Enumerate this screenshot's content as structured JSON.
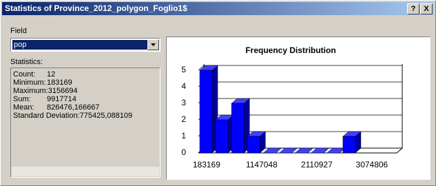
{
  "window": {
    "title": "Statistics of Province_2012_polygon_Foglio1$",
    "buttons": [
      "?",
      "X"
    ]
  },
  "field": {
    "label": "Field",
    "value": "pop"
  },
  "statistics": {
    "label": "Statistics:",
    "rows": [
      [
        "Count:",
        "12"
      ],
      [
        "Minimum:",
        "183169"
      ],
      [
        "Maximum:",
        "3156694"
      ],
      [
        "Sum:",
        "9917714"
      ],
      [
        "Mean:",
        "826476,166667"
      ],
      [
        "Standard Deviation:",
        "775425,088109"
      ]
    ]
  },
  "chart_data": {
    "type": "bar",
    "title": "Frequency Distribution",
    "categories": [
      null,
      null,
      null,
      null,
      null,
      null,
      null,
      null,
      null,
      null
    ],
    "values": [
      5,
      2,
      3,
      1,
      0,
      0,
      0,
      0,
      0,
      1
    ],
    "color": "#0000ff",
    "ylim": [
      0,
      5
    ],
    "yticks": [
      0,
      1,
      2,
      3,
      4,
      5
    ],
    "xlim": [
      40000,
      3510000
    ],
    "xticks": [
      183169,
      1147048,
      2110927,
      3074806
    ],
    "grid": true
  }
}
